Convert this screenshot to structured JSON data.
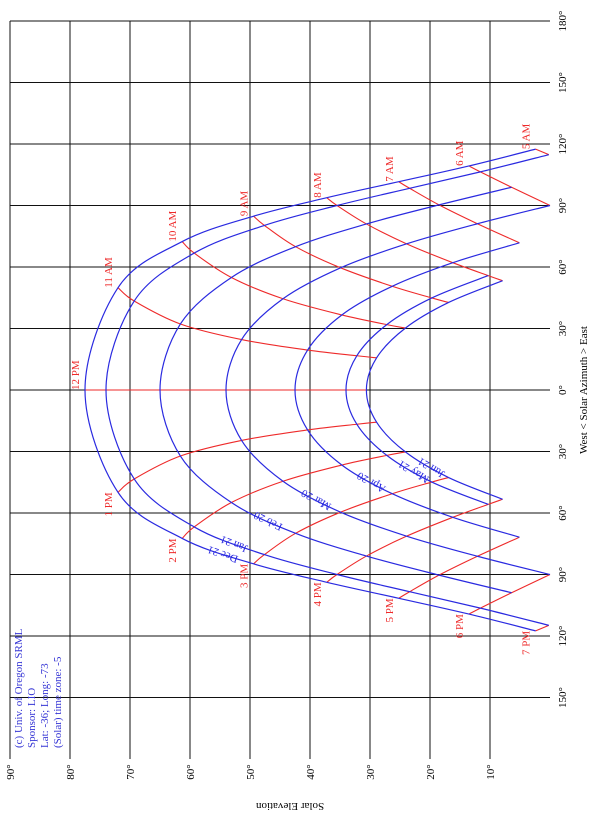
{
  "chart_data": {
    "type": "line",
    "x_label": "West < Solar Azimuth > East",
    "y_label": "Solar Elevation",
    "xlim": [
      -180,
      180
    ],
    "ylim": [
      0,
      90
    ],
    "xticks": [
      {
        "value": 180,
        "label": "180°"
      },
      {
        "value": 150,
        "label": "150°"
      },
      {
        "value": 120,
        "label": "120°"
      },
      {
        "value": 90,
        "label": "90°"
      },
      {
        "value": 60,
        "label": "60°"
      },
      {
        "value": 30,
        "label": "30°"
      },
      {
        "value": 0,
        "label": "0°"
      },
      {
        "value": -30,
        "label": "30°"
      },
      {
        "value": -60,
        "label": "60°"
      },
      {
        "value": -90,
        "label": "90°"
      },
      {
        "value": -120,
        "label": "120°"
      },
      {
        "value": -150,
        "label": "150°"
      }
    ],
    "yticks": [
      {
        "value": 10,
        "label": "10°"
      },
      {
        "value": 20,
        "label": "20°"
      },
      {
        "value": 30,
        "label": "30°"
      },
      {
        "value": 40,
        "label": "40°"
      },
      {
        "value": 50,
        "label": "50°"
      },
      {
        "value": 60,
        "label": "60°"
      },
      {
        "value": 70,
        "label": "70°"
      },
      {
        "value": 80,
        "label": "80°"
      },
      {
        "value": 90,
        "label": "90°"
      }
    ],
    "grid": true,
    "hour_labels": [
      "5 AM",
      "6 AM",
      "7 AM",
      "8 AM",
      "9 AM",
      "10 AM",
      "11 AM",
      "12 PM",
      "1 PM",
      "2 PM",
      "3 PM",
      "4 PM",
      "5 PM",
      "6 PM",
      "7 PM"
    ],
    "hour_color": "#ee2a2a",
    "series": [
      {
        "name": "Dec 21",
        "color": "#2a2ae0",
        "x": [
          117.5,
          109.3,
          101.6,
          93.8,
          84.8,
          72.4,
          49.9,
          0,
          -49.9,
          -72.4,
          -84.8,
          -93.8,
          -101.6,
          -109.3,
          -117.5
        ],
        "values": [
          2.4,
          13.5,
          25.2,
          37.2,
          49.4,
          61.3,
          72.0,
          77.5,
          72.0,
          61.3,
          49.4,
          37.2,
          25.2,
          13.5,
          2.4
        ]
      },
      {
        "name": "Jan 21",
        "color": "#2a2ae0",
        "x": [
          114.8,
          106.4,
          98.4,
          90.0,
          80.3,
          66.8,
          43.4,
          0,
          -43.4,
          -66.8,
          -80.3,
          -90.0,
          -98.4,
          -106.4,
          -114.8
        ],
        "values": [
          0.2,
          11.6,
          23.4,
          35.5,
          47.6,
          59.3,
          69.3,
          74.0,
          69.3,
          59.3,
          47.6,
          35.5,
          23.4,
          11.6,
          0.2
        ]
      },
      {
        "name": "Feb 20",
        "color": "#2a2ae0",
        "x": [
          null,
          98.9,
          90.3,
          81.0,
          69.9,
          54.9,
          32.2,
          0,
          -32.2,
          -54.9,
          -69.9,
          -81.0,
          -90.3,
          -98.9,
          null
        ],
        "values": [
          null,
          6.4,
          18.5,
          30.6,
          42.4,
          53.1,
          61.6,
          65.0,
          61.6,
          53.1,
          42.4,
          30.6,
          18.5,
          6.4,
          null
        ]
      },
      {
        "name": "Mar 20",
        "color": "#2a2ae0",
        "x": [
          null,
          90.0,
          81.1,
          71.3,
          59.6,
          44.5,
          24.6,
          0,
          -24.6,
          -44.5,
          -59.6,
          -71.3,
          -81.1,
          -90.0,
          null
        ],
        "values": [
          null,
          0,
          12.1,
          23.9,
          34.9,
          44.5,
          51.4,
          54.0,
          51.4,
          44.5,
          34.9,
          23.9,
          12.1,
          0,
          null
        ]
      },
      {
        "name": "Apr 20",
        "color": "#2a2ae0",
        "x": [
          null,
          null,
          71.8,
          62.1,
          50.6,
          36.6,
          19.5,
          0,
          -19.5,
          -36.6,
          -50.6,
          -62.1,
          -71.8,
          null,
          null
        ],
        "values": [
          null,
          null,
          5.1,
          16.2,
          26.3,
          34.7,
          40.4,
          42.5,
          40.4,
          34.7,
          26.3,
          16.2,
          5.1,
          null,
          null
        ]
      },
      {
        "name": "May 21",
        "color": "#2a2ae0",
        "x": [
          null,
          null,
          null,
          55.8,
          44.9,
          31.9,
          16.7,
          0,
          -16.7,
          -31.9,
          -44.9,
          -55.8,
          null,
          null,
          null
        ],
        "values": [
          null,
          null,
          null,
          10.3,
          19.7,
          27.2,
          32.2,
          34.0,
          32.2,
          27.2,
          19.7,
          10.3,
          null,
          null,
          null
        ]
      },
      {
        "name": "Jun 21",
        "color": "#2a2ae0",
        "x": [
          null,
          null,
          null,
          53.3,
          42.7,
          30.2,
          15.7,
          0,
          -15.7,
          -30.2,
          -42.7,
          -53.3,
          null,
          null,
          null
        ],
        "values": [
          null,
          null,
          null,
          7.9,
          16.9,
          24.1,
          28.9,
          30.6,
          28.9,
          24.1,
          16.9,
          7.9,
          null,
          null,
          null
        ]
      }
    ],
    "notes": [
      "(c) Univ. of Oregon SRML",
      "Sponsor: LIO",
      "Lat: -36; Long: -73",
      "(Solar) time zone: -5"
    ],
    "notes_color": "#3535d5"
  }
}
